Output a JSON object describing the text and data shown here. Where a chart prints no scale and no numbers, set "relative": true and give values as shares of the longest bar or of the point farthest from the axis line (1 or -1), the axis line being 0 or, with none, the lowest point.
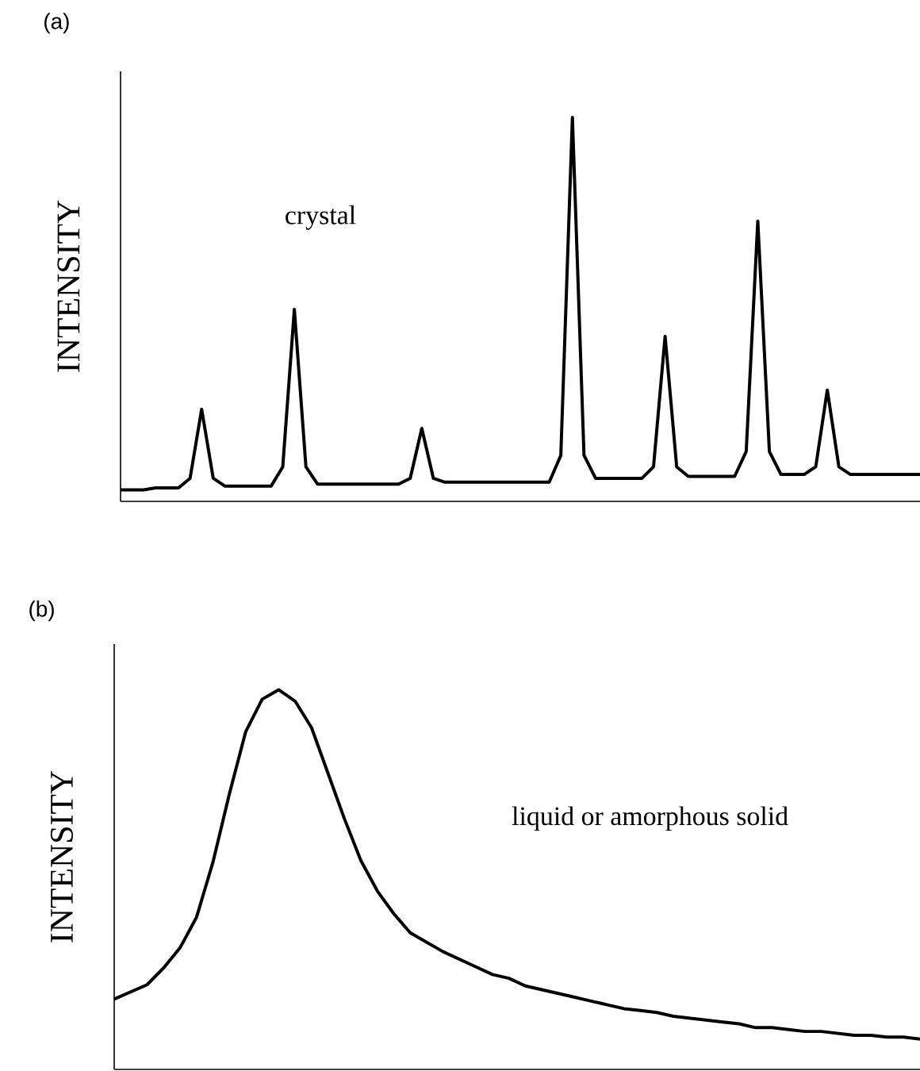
{
  "chart_data": [
    {
      "type": "line",
      "title": "(a)",
      "ylabel": "INTENSITY",
      "relative": true,
      "tick_labels": false,
      "color": "#000000",
      "annotations": [
        "crystal"
      ],
      "categories": [
        null,
        null,
        null,
        null,
        null,
        null,
        null,
        null,
        null,
        null,
        null,
        null,
        null,
        null,
        null,
        null,
        null,
        null,
        null,
        null,
        null,
        null,
        null,
        null,
        null,
        null,
        null,
        null,
        null,
        null,
        null,
        null,
        null,
        null,
        null,
        null,
        null,
        null,
        null,
        null,
        null,
        null,
        null,
        null,
        null,
        null,
        null,
        null,
        null,
        null,
        null,
        null,
        null,
        null,
        null,
        null,
        null,
        null,
        null,
        null,
        null,
        null,
        null,
        null,
        null,
        null,
        null,
        null,
        null,
        null
      ],
      "values": [
        0.03,
        0.03,
        0.03,
        0.035,
        0.035,
        0.035,
        0.06,
        0.24,
        0.06,
        0.04,
        0.04,
        0.04,
        0.04,
        0.04,
        0.09,
        0.5,
        0.09,
        0.045,
        0.045,
        0.045,
        0.045,
        0.045,
        0.045,
        0.045,
        0.045,
        0.06,
        0.19,
        0.06,
        0.05,
        0.05,
        0.05,
        0.05,
        0.05,
        0.05,
        0.05,
        0.05,
        0.05,
        0.05,
        0.12,
        1.0,
        0.12,
        0.06,
        0.06,
        0.06,
        0.06,
        0.06,
        0.09,
        0.43,
        0.09,
        0.065,
        0.065,
        0.065,
        0.065,
        0.065,
        0.13,
        0.73,
        0.13,
        0.07,
        0.07,
        0.07,
        0.09,
        0.29,
        0.09,
        0.07,
        0.07,
        0.07,
        0.07,
        0.07,
        0.07,
        0.07
      ]
    },
    {
      "type": "line",
      "title": "(b)",
      "ylabel": "INTENSITY",
      "relative": true,
      "tick_labels": false,
      "color": "#000000",
      "annotations": [
        "liquid or amorphous solid"
      ],
      "categories": [
        null,
        null,
        null,
        null,
        null,
        null,
        null,
        null,
        null,
        null,
        null,
        null,
        null,
        null,
        null,
        null,
        null,
        null,
        null,
        null,
        null,
        null,
        null,
        null,
        null,
        null,
        null,
        null,
        null,
        null,
        null,
        null,
        null,
        null,
        null,
        null,
        null,
        null,
        null,
        null,
        null,
        null,
        null,
        null,
        null,
        null,
        null,
        null,
        null,
        null
      ],
      "values": [
        0.185,
        0.204,
        0.223,
        0.267,
        0.32,
        0.4,
        0.545,
        0.725,
        0.89,
        0.975,
        1.0,
        0.97,
        0.9,
        0.78,
        0.66,
        0.55,
        0.47,
        0.41,
        0.36,
        0.335,
        0.31,
        0.29,
        0.27,
        0.25,
        0.24,
        0.22,
        0.21,
        0.2,
        0.19,
        0.18,
        0.17,
        0.16,
        0.155,
        0.15,
        0.14,
        0.135,
        0.13,
        0.125,
        0.12,
        0.11,
        0.11,
        0.105,
        0.1,
        0.1,
        0.095,
        0.09,
        0.09,
        0.085,
        0.085,
        0.08
      ]
    }
  ]
}
